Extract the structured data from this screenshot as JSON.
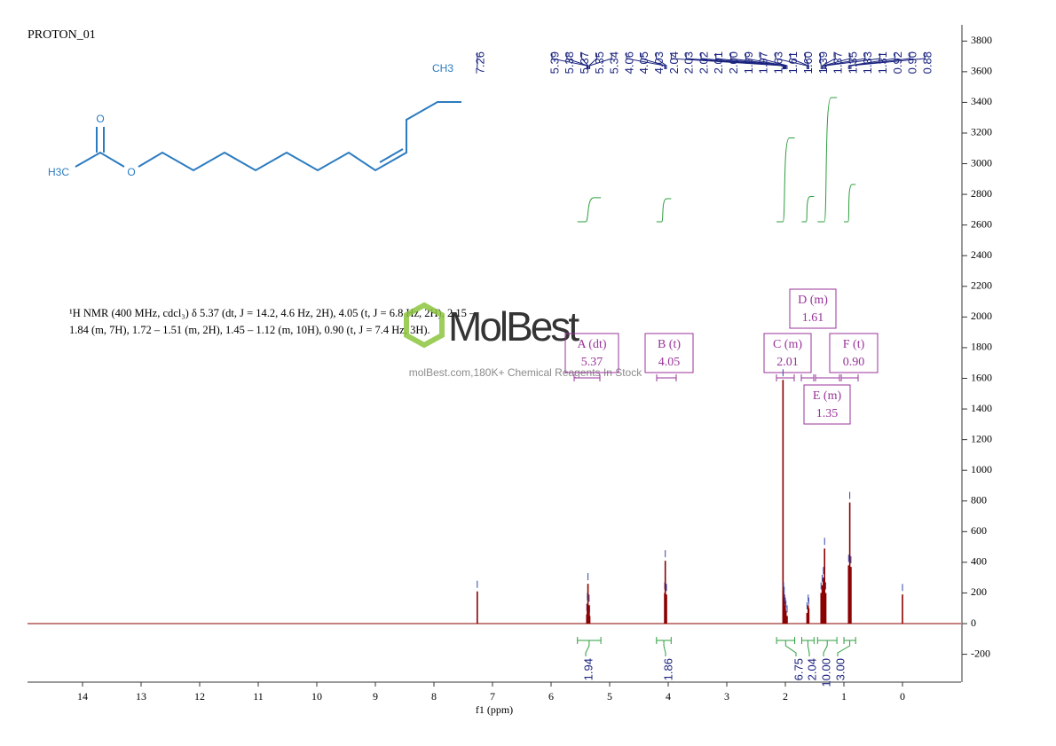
{
  "chart_data": {
    "type": "nmr",
    "title": "PROTON_01",
    "x_label": "f1 (ppm)",
    "xlim": [
      15,
      -1
    ],
    "xticks": [
      14,
      13,
      12,
      11,
      10,
      9,
      8,
      7,
      6,
      5,
      4,
      3,
      2,
      1,
      0
    ],
    "ylim": [
      -380,
      3900
    ],
    "yticks": [
      -200,
      0,
      200,
      400,
      600,
      800,
      1000,
      1200,
      1400,
      1600,
      1800,
      2000,
      2200,
      2400,
      2600,
      2800,
      3000,
      3200,
      3400,
      3600,
      3800
    ],
    "color": "#8b0000",
    "peaks": {
      "x": [
        7.26,
        5.39,
        5.38,
        5.37,
        5.35,
        5.34,
        4.06,
        4.05,
        4.03,
        2.04,
        2.03,
        2.02,
        2.01,
        2.0,
        1.99,
        1.97,
        1.63,
        1.61,
        1.6,
        1.39,
        1.37,
        1.35,
        1.33,
        1.31,
        0.92,
        0.9,
        0.88,
        0.0
      ],
      "values": [
        210,
        60,
        130,
        260,
        120,
        50,
        200,
        410,
        190,
        1590,
        200,
        170,
        120,
        100,
        80,
        50,
        70,
        120,
        100,
        200,
        250,
        300,
        490,
        200,
        380,
        790,
        370,
        190
      ]
    },
    "peak_picks": [
      {
        "value": 7.26,
        "label": "7.26"
      },
      {
        "value": 5.39,
        "label": "5.39"
      },
      {
        "value": 5.38,
        "label": "5.38"
      },
      {
        "value": 5.37,
        "label": "5.37"
      },
      {
        "value": 5.35,
        "label": "5.35"
      },
      {
        "value": 5.34,
        "label": "5.34"
      },
      {
        "value": 4.06,
        "label": "4.06"
      },
      {
        "value": 4.05,
        "label": "4.05"
      },
      {
        "value": 4.03,
        "label": "4.03"
      },
      {
        "value": 2.04,
        "label": "2.04"
      },
      {
        "value": 2.03,
        "label": "2.03"
      },
      {
        "value": 2.02,
        "label": "2.02"
      },
      {
        "value": 2.01,
        "label": "2.01"
      },
      {
        "value": 2.0,
        "label": "2.00"
      },
      {
        "value": 1.99,
        "label": "1.99"
      },
      {
        "value": 1.97,
        "label": "1.97"
      },
      {
        "value": 1.63,
        "label": "1.63"
      },
      {
        "value": 1.61,
        "label": "1.61"
      },
      {
        "value": 1.6,
        "label": "1.60"
      },
      {
        "value": 1.39,
        "label": "1.39"
      },
      {
        "value": 1.37,
        "label": "1.37"
      },
      {
        "value": 1.35,
        "label": "1.35"
      },
      {
        "value": 1.33,
        "label": "1.33"
      },
      {
        "value": 1.31,
        "label": "1.31"
      },
      {
        "value": 0.92,
        "label": "0.92"
      },
      {
        "value": 0.9,
        "label": "0.90"
      },
      {
        "value": 0.88,
        "label": "0.88"
      }
    ],
    "integrals": [
      {
        "from": 5.55,
        "to": 5.15,
        "value": 1.94,
        "label": "1.94"
      },
      {
        "from": 4.2,
        "to": 3.95,
        "value": 1.86,
        "label": "1.86"
      },
      {
        "from": 2.15,
        "to": 1.84,
        "value": 6.75,
        "label": "6.75"
      },
      {
        "from": 1.72,
        "to": 1.51,
        "value": 2.04,
        "label": "2.04"
      },
      {
        "from": 1.45,
        "to": 1.12,
        "value": 10.0,
        "label": "10.00"
      },
      {
        "from": 1.0,
        "to": 0.8,
        "value": 3.0,
        "label": "3.00"
      }
    ],
    "multiplets": [
      {
        "name": "A (dt)",
        "shift": "5.37"
      },
      {
        "name": "B (t)",
        "shift": "4.05"
      },
      {
        "name": "C (m)",
        "shift": "2.01"
      },
      {
        "name": "D (m)",
        "shift": "1.61"
      },
      {
        "name": "E (m)",
        "shift": "1.35"
      },
      {
        "name": "F (t)",
        "shift": "0.90"
      }
    ],
    "description": [
      "¹H NMR (400 MHz, cdcl₃) δ 5.37 (dt, J = 14.2, 4.6 Hz, 2H), 4.05 (t, J = 6.8 Hz, 2H), 2.15 –",
      "1.84 (m, 7H), 1.72 – 1.51 (m, 2H), 1.45 – 1.12 (m, 10H), 0.90 (t, J = 7.4 Hz, 3H)."
    ],
    "molecule_labels": [
      "CH3",
      "O",
      "H3C",
      "O"
    ],
    "watermark": {
      "logo": "MolBest",
      "text": "molBest.com,180K+ Chemical Reagents In Stock"
    }
  }
}
